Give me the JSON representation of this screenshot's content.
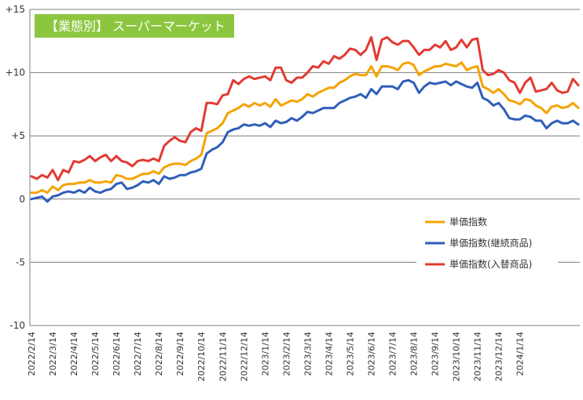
{
  "chart_data": {
    "type": "line",
    "title": "【業態別】 スーパーマーケット",
    "xlabel": "",
    "ylabel": "",
    "ylim": [
      -10,
      15
    ],
    "y_ticks": [
      {
        "value": 15,
        "label": "+15"
      },
      {
        "value": 10,
        "label": "+10"
      },
      {
        "value": 5,
        "label": "+5"
      },
      {
        "value": 0,
        "label": "0"
      },
      {
        "value": -5,
        "label": "-5"
      },
      {
        "value": -10,
        "label": "-10"
      }
    ],
    "x_ticks": [
      "2022/2/14",
      "2022/3/14",
      "2022/4/14",
      "2022/5/14",
      "2022/6/14",
      "2022/7/14",
      "2022/8/14",
      "2022/9/14",
      "2022/10/14",
      "2022/11/14",
      "2022/12/14",
      "2023/1/14",
      "2023/2/14",
      "2023/3/14",
      "2023/4/14",
      "2023/5/14",
      "2023/6/14",
      "2023/7/14",
      "2023/8/14",
      "2023/9/14",
      "2023/10/14",
      "2023/11/14",
      "2023/12/14",
      "2024/1/14"
    ],
    "grid": "horizontal",
    "legend_position": "right-middle",
    "points_per_month": 4,
    "series": [
      {
        "name": "単価指数",
        "color": "#F5A300",
        "values": [
          0.5,
          0.5,
          0.7,
          0.5,
          1.0,
          0.7,
          1.1,
          1.2,
          1.2,
          1.3,
          1.3,
          1.5,
          1.3,
          1.3,
          1.4,
          1.3,
          1.9,
          1.8,
          1.6,
          1.6,
          1.8,
          2.0,
          2.0,
          2.2,
          2.0,
          2.5,
          2.7,
          2.8,
          2.8,
          2.7,
          3.0,
          3.2,
          3.5,
          5.2,
          5.4,
          5.6,
          6.0,
          6.8,
          7.0,
          7.2,
          7.5,
          7.3,
          7.6,
          7.4,
          7.6,
          7.3,
          7.9,
          7.4,
          7.6,
          7.8,
          7.7,
          7.9,
          8.3,
          8.1,
          8.4,
          8.6,
          8.8,
          8.8,
          9.2,
          9.4,
          9.7,
          9.9,
          9.8,
          9.8,
          10.5,
          9.7,
          10.5,
          10.5,
          10.4,
          10.2,
          10.7,
          10.8,
          10.6,
          9.8,
          10.1,
          10.3,
          10.5,
          10.5,
          10.7,
          10.6,
          10.5,
          10.8,
          10.2,
          10.4,
          10.5,
          8.9,
          8.7,
          8.4,
          8.7,
          8.3,
          7.8,
          7.7,
          7.5,
          7.9,
          7.8,
          7.4,
          7.2,
          6.8,
          7.3,
          7.4,
          7.2,
          7.3,
          7.6,
          7.2
        ]
      },
      {
        "name": "単価指数(継続商品)",
        "color": "#2E5EB8",
        "values": [
          0.0,
          0.1,
          0.2,
          -0.2,
          0.2,
          0.3,
          0.5,
          0.6,
          0.5,
          0.7,
          0.5,
          0.9,
          0.6,
          0.5,
          0.7,
          0.8,
          1.2,
          1.3,
          0.8,
          0.9,
          1.1,
          1.4,
          1.3,
          1.5,
          1.2,
          1.8,
          1.6,
          1.7,
          1.9,
          1.9,
          2.1,
          2.2,
          2.4,
          3.6,
          3.9,
          4.1,
          4.5,
          5.3,
          5.5,
          5.6,
          5.9,
          5.8,
          5.9,
          5.8,
          6.0,
          5.7,
          6.2,
          6.0,
          6.1,
          6.4,
          6.2,
          6.5,
          6.9,
          6.8,
          7.0,
          7.2,
          7.2,
          7.2,
          7.6,
          7.8,
          8.0,
          8.1,
          8.3,
          8.0,
          8.7,
          8.3,
          8.9,
          8.9,
          8.9,
          8.7,
          9.3,
          9.4,
          9.2,
          8.4,
          8.9,
          9.2,
          9.1,
          9.2,
          9.3,
          9.0,
          9.3,
          9.1,
          8.9,
          8.8,
          9.2,
          8.0,
          7.8,
          7.4,
          7.6,
          7.1,
          6.4,
          6.3,
          6.3,
          6.6,
          6.5,
          6.2,
          6.2,
          5.6,
          6.0,
          6.2,
          6.0,
          6.0,
          6.2,
          5.9
        ]
      },
      {
        "name": "単価指数(入替商品)",
        "color": "#E33A32",
        "values": [
          1.8,
          1.6,
          1.9,
          1.7,
          2.3,
          1.5,
          2.3,
          2.1,
          3.0,
          2.9,
          3.1,
          3.4,
          3.0,
          3.3,
          3.5,
          3.0,
          3.4,
          3.0,
          2.9,
          2.6,
          3.0,
          3.1,
          3.0,
          3.2,
          3.0,
          4.2,
          4.6,
          4.9,
          4.6,
          4.5,
          5.3,
          5.6,
          5.4,
          7.6,
          7.6,
          7.5,
          8.2,
          8.3,
          9.4,
          9.1,
          9.5,
          9.7,
          9.5,
          9.6,
          9.7,
          9.4,
          10.4,
          10.4,
          9.4,
          9.2,
          9.6,
          9.6,
          10.0,
          10.5,
          10.4,
          10.9,
          10.7,
          11.3,
          11.1,
          11.4,
          11.9,
          11.8,
          11.4,
          11.8,
          12.8,
          11.0,
          12.6,
          12.8,
          12.4,
          12.2,
          12.5,
          12.5,
          12.0,
          11.4,
          11.8,
          11.8,
          12.2,
          12.0,
          12.5,
          11.8,
          12.0,
          12.6,
          12.0,
          12.6,
          12.7,
          10.2,
          9.8,
          9.9,
          10.2,
          10.0,
          9.4,
          9.2,
          8.4,
          9.2,
          9.6,
          8.5,
          8.6,
          8.7,
          9.2,
          8.6,
          8.4,
          8.5,
          9.5,
          9.0
        ]
      }
    ]
  }
}
